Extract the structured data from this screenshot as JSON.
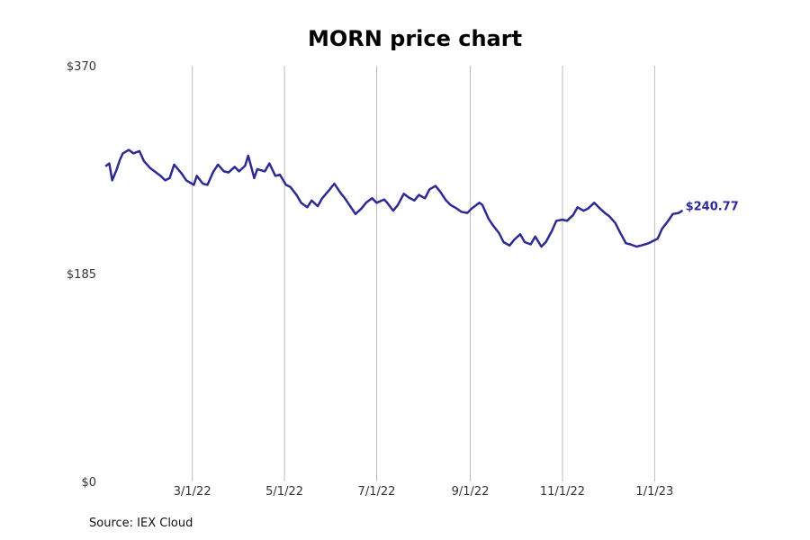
{
  "chart_data": {
    "type": "line",
    "title": "MORN price chart",
    "xlabel": "",
    "ylabel": "",
    "ylim": [
      0,
      370
    ],
    "y_ticks": [
      {
        "value": 0,
        "label": "$0"
      },
      {
        "value": 185,
        "label": "$185"
      },
      {
        "value": 370,
        "label": "$370"
      }
    ],
    "x_ticks": [
      {
        "value": "2022-03-01",
        "label": "3/1/22"
      },
      {
        "value": "2022-05-01",
        "label": "5/1/22"
      },
      {
        "value": "2022-07-01",
        "label": "7/1/22"
      },
      {
        "value": "2022-09-01",
        "label": "9/1/22"
      },
      {
        "value": "2022-11-01",
        "label": "11/1/22"
      },
      {
        "value": "2023-01-01",
        "label": "1/1/23"
      }
    ],
    "xlim": [
      "2022-01-03",
      "2023-02-24"
    ],
    "grid": "vertical",
    "line_color": "#2e2a94",
    "grid_color": "#bbbbbb",
    "last_value_label": "$240.77",
    "series": [
      {
        "values": [
          [
            "2022-01-03",
            281
          ],
          [
            "2022-01-05",
            283
          ],
          [
            "2022-01-07",
            268
          ],
          [
            "2022-01-10",
            278
          ],
          [
            "2022-01-12",
            286
          ],
          [
            "2022-01-14",
            292
          ],
          [
            "2022-01-18",
            295
          ],
          [
            "2022-01-21",
            292
          ],
          [
            "2022-01-25",
            294
          ],
          [
            "2022-01-28",
            285
          ],
          [
            "2022-02-01",
            279
          ],
          [
            "2022-02-04",
            276
          ],
          [
            "2022-02-08",
            272
          ],
          [
            "2022-02-11",
            268
          ],
          [
            "2022-02-14",
            270
          ],
          [
            "2022-02-17",
            282
          ],
          [
            "2022-02-22",
            274
          ],
          [
            "2022-02-25",
            268
          ],
          [
            "2022-03-02",
            264
          ],
          [
            "2022-03-04",
            272
          ],
          [
            "2022-03-08",
            265
          ],
          [
            "2022-03-11",
            264
          ],
          [
            "2022-03-15",
            276
          ],
          [
            "2022-03-18",
            282
          ],
          [
            "2022-03-22",
            276
          ],
          [
            "2022-03-25",
            275
          ],
          [
            "2022-03-29",
            280
          ],
          [
            "2022-04-01",
            276
          ],
          [
            "2022-04-05",
            281
          ],
          [
            "2022-04-07",
            290
          ],
          [
            "2022-04-11",
            270
          ],
          [
            "2022-04-13",
            278
          ],
          [
            "2022-04-18",
            276
          ],
          [
            "2022-04-21",
            283
          ],
          [
            "2022-04-25",
            272
          ],
          [
            "2022-04-28",
            273
          ],
          [
            "2022-05-02",
            264
          ],
          [
            "2022-05-05",
            262
          ],
          [
            "2022-05-09",
            255
          ],
          [
            "2022-05-12",
            248
          ],
          [
            "2022-05-16",
            244
          ],
          [
            "2022-05-19",
            250
          ],
          [
            "2022-05-23",
            245
          ],
          [
            "2022-05-26",
            252
          ],
          [
            "2022-05-31",
            260
          ],
          [
            "2022-06-03",
            265
          ],
          [
            "2022-06-07",
            257
          ],
          [
            "2022-06-10",
            252
          ],
          [
            "2022-06-14",
            244
          ],
          [
            "2022-06-17",
            238
          ],
          [
            "2022-06-21",
            243
          ],
          [
            "2022-06-24",
            248
          ],
          [
            "2022-06-28",
            252
          ],
          [
            "2022-07-01",
            248
          ],
          [
            "2022-07-06",
            251
          ],
          [
            "2022-07-08",
            248
          ],
          [
            "2022-07-12",
            241
          ],
          [
            "2022-07-15",
            246
          ],
          [
            "2022-07-19",
            256
          ],
          [
            "2022-07-22",
            253
          ],
          [
            "2022-07-26",
            250
          ],
          [
            "2022-07-29",
            255
          ],
          [
            "2022-08-02",
            252
          ],
          [
            "2022-08-05",
            260
          ],
          [
            "2022-08-09",
            263
          ],
          [
            "2022-08-12",
            258
          ],
          [
            "2022-08-16",
            250
          ],
          [
            "2022-08-19",
            246
          ],
          [
            "2022-08-23",
            243
          ],
          [
            "2022-08-26",
            240
          ],
          [
            "2022-08-30",
            239
          ],
          [
            "2022-09-02",
            243
          ],
          [
            "2022-09-07",
            248
          ],
          [
            "2022-09-09",
            246
          ],
          [
            "2022-09-13",
            234
          ],
          [
            "2022-09-16",
            228
          ],
          [
            "2022-09-20",
            221
          ],
          [
            "2022-09-23",
            213
          ],
          [
            "2022-09-27",
            210
          ],
          [
            "2022-09-30",
            215
          ],
          [
            "2022-10-04",
            220
          ],
          [
            "2022-10-07",
            213
          ],
          [
            "2022-10-11",
            211
          ],
          [
            "2022-10-14",
            218
          ],
          [
            "2022-10-18",
            209
          ],
          [
            "2022-10-21",
            213
          ],
          [
            "2022-10-25",
            223
          ],
          [
            "2022-10-28",
            232
          ],
          [
            "2022-11-01",
            233
          ],
          [
            "2022-11-04",
            232
          ],
          [
            "2022-11-08",
            237
          ],
          [
            "2022-11-11",
            244
          ],
          [
            "2022-11-15",
            241
          ],
          [
            "2022-11-18",
            243
          ],
          [
            "2022-11-22",
            248
          ],
          [
            "2022-11-25",
            244
          ],
          [
            "2022-11-29",
            239
          ],
          [
            "2022-12-02",
            236
          ],
          [
            "2022-12-06",
            230
          ],
          [
            "2022-12-09",
            222
          ],
          [
            "2022-12-13",
            212
          ],
          [
            "2022-12-16",
            211
          ],
          [
            "2022-12-20",
            209
          ],
          [
            "2022-12-23",
            210
          ],
          [
            "2022-12-28",
            212
          ],
          [
            "2023-01-03",
            216
          ],
          [
            "2023-01-06",
            225
          ],
          [
            "2023-01-10",
            232
          ],
          [
            "2023-01-13",
            238
          ],
          [
            "2023-01-17",
            239
          ],
          [
            "2023-01-19",
            240.77
          ]
        ]
      }
    ]
  },
  "source_text": "Source: IEX Cloud"
}
